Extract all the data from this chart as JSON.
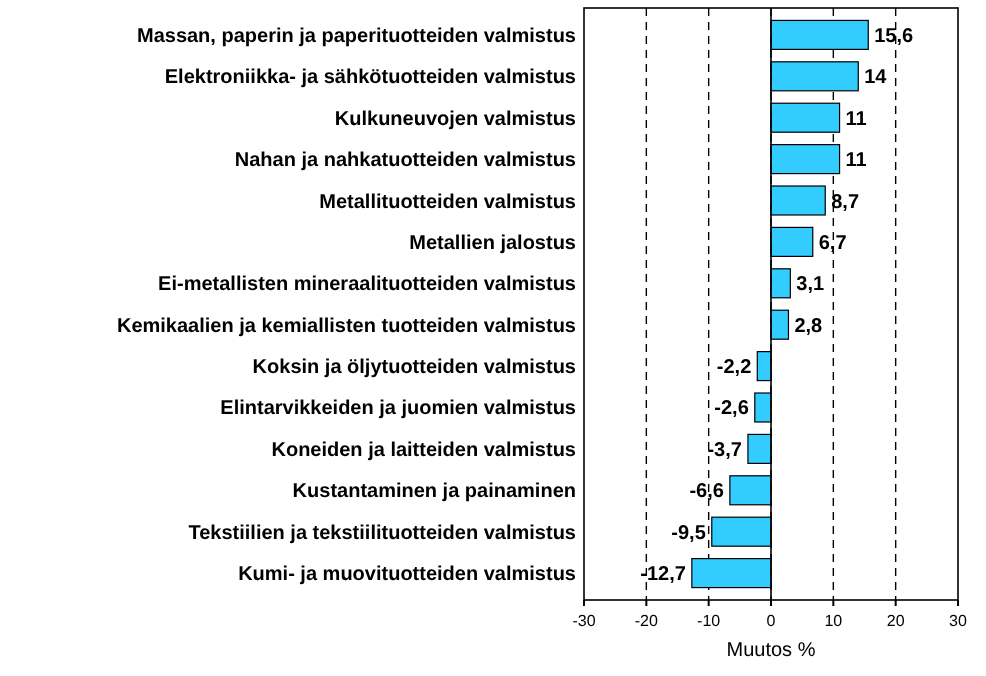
{
  "chart_data": {
    "type": "bar",
    "orientation": "horizontal",
    "xlabel": "Muutos %",
    "categories": [
      "Massan, paperin ja paperituotteiden valmistus",
      "Elektroniikka- ja sähkötuotteiden valmistus",
      "Kulkuneuvojen valmistus",
      "Nahan ja nahkatuotteiden valmistus",
      "Metallituotteiden valmistus",
      "Metallien jalostus",
      "Ei-metallisten mineraalituotteiden valmistus",
      "Kemikaalien ja kemiallisten tuotteiden valmistus",
      "Koksin ja öljytuotteiden valmistus",
      "Elintarvikkeiden ja juomien valmistus",
      "Koneiden ja laitteiden valmistus",
      "Kustantaminen ja painaminen",
      "Tekstiilien ja tekstiilituotteiden valmistus",
      "Kumi- ja muovituotteiden valmistus"
    ],
    "values": [
      15.6,
      14,
      11,
      11,
      8.7,
      6.7,
      3.1,
      2.8,
      -2.2,
      -2.6,
      -3.7,
      -6.6,
      -9.5,
      -12.7
    ],
    "value_labels": [
      "15,6",
      "14",
      "11",
      "11",
      "8,7",
      "6,7",
      "3,1",
      "2,8",
      "-2,2",
      "-2,6",
      "-3,7",
      "-6,6",
      "-9,5",
      "-12,7"
    ],
    "color": "#33ccff",
    "xlim": [
      -30,
      30
    ],
    "xticks": [
      -30,
      -20,
      -10,
      0,
      10,
      20,
      30
    ],
    "grid": "x"
  }
}
